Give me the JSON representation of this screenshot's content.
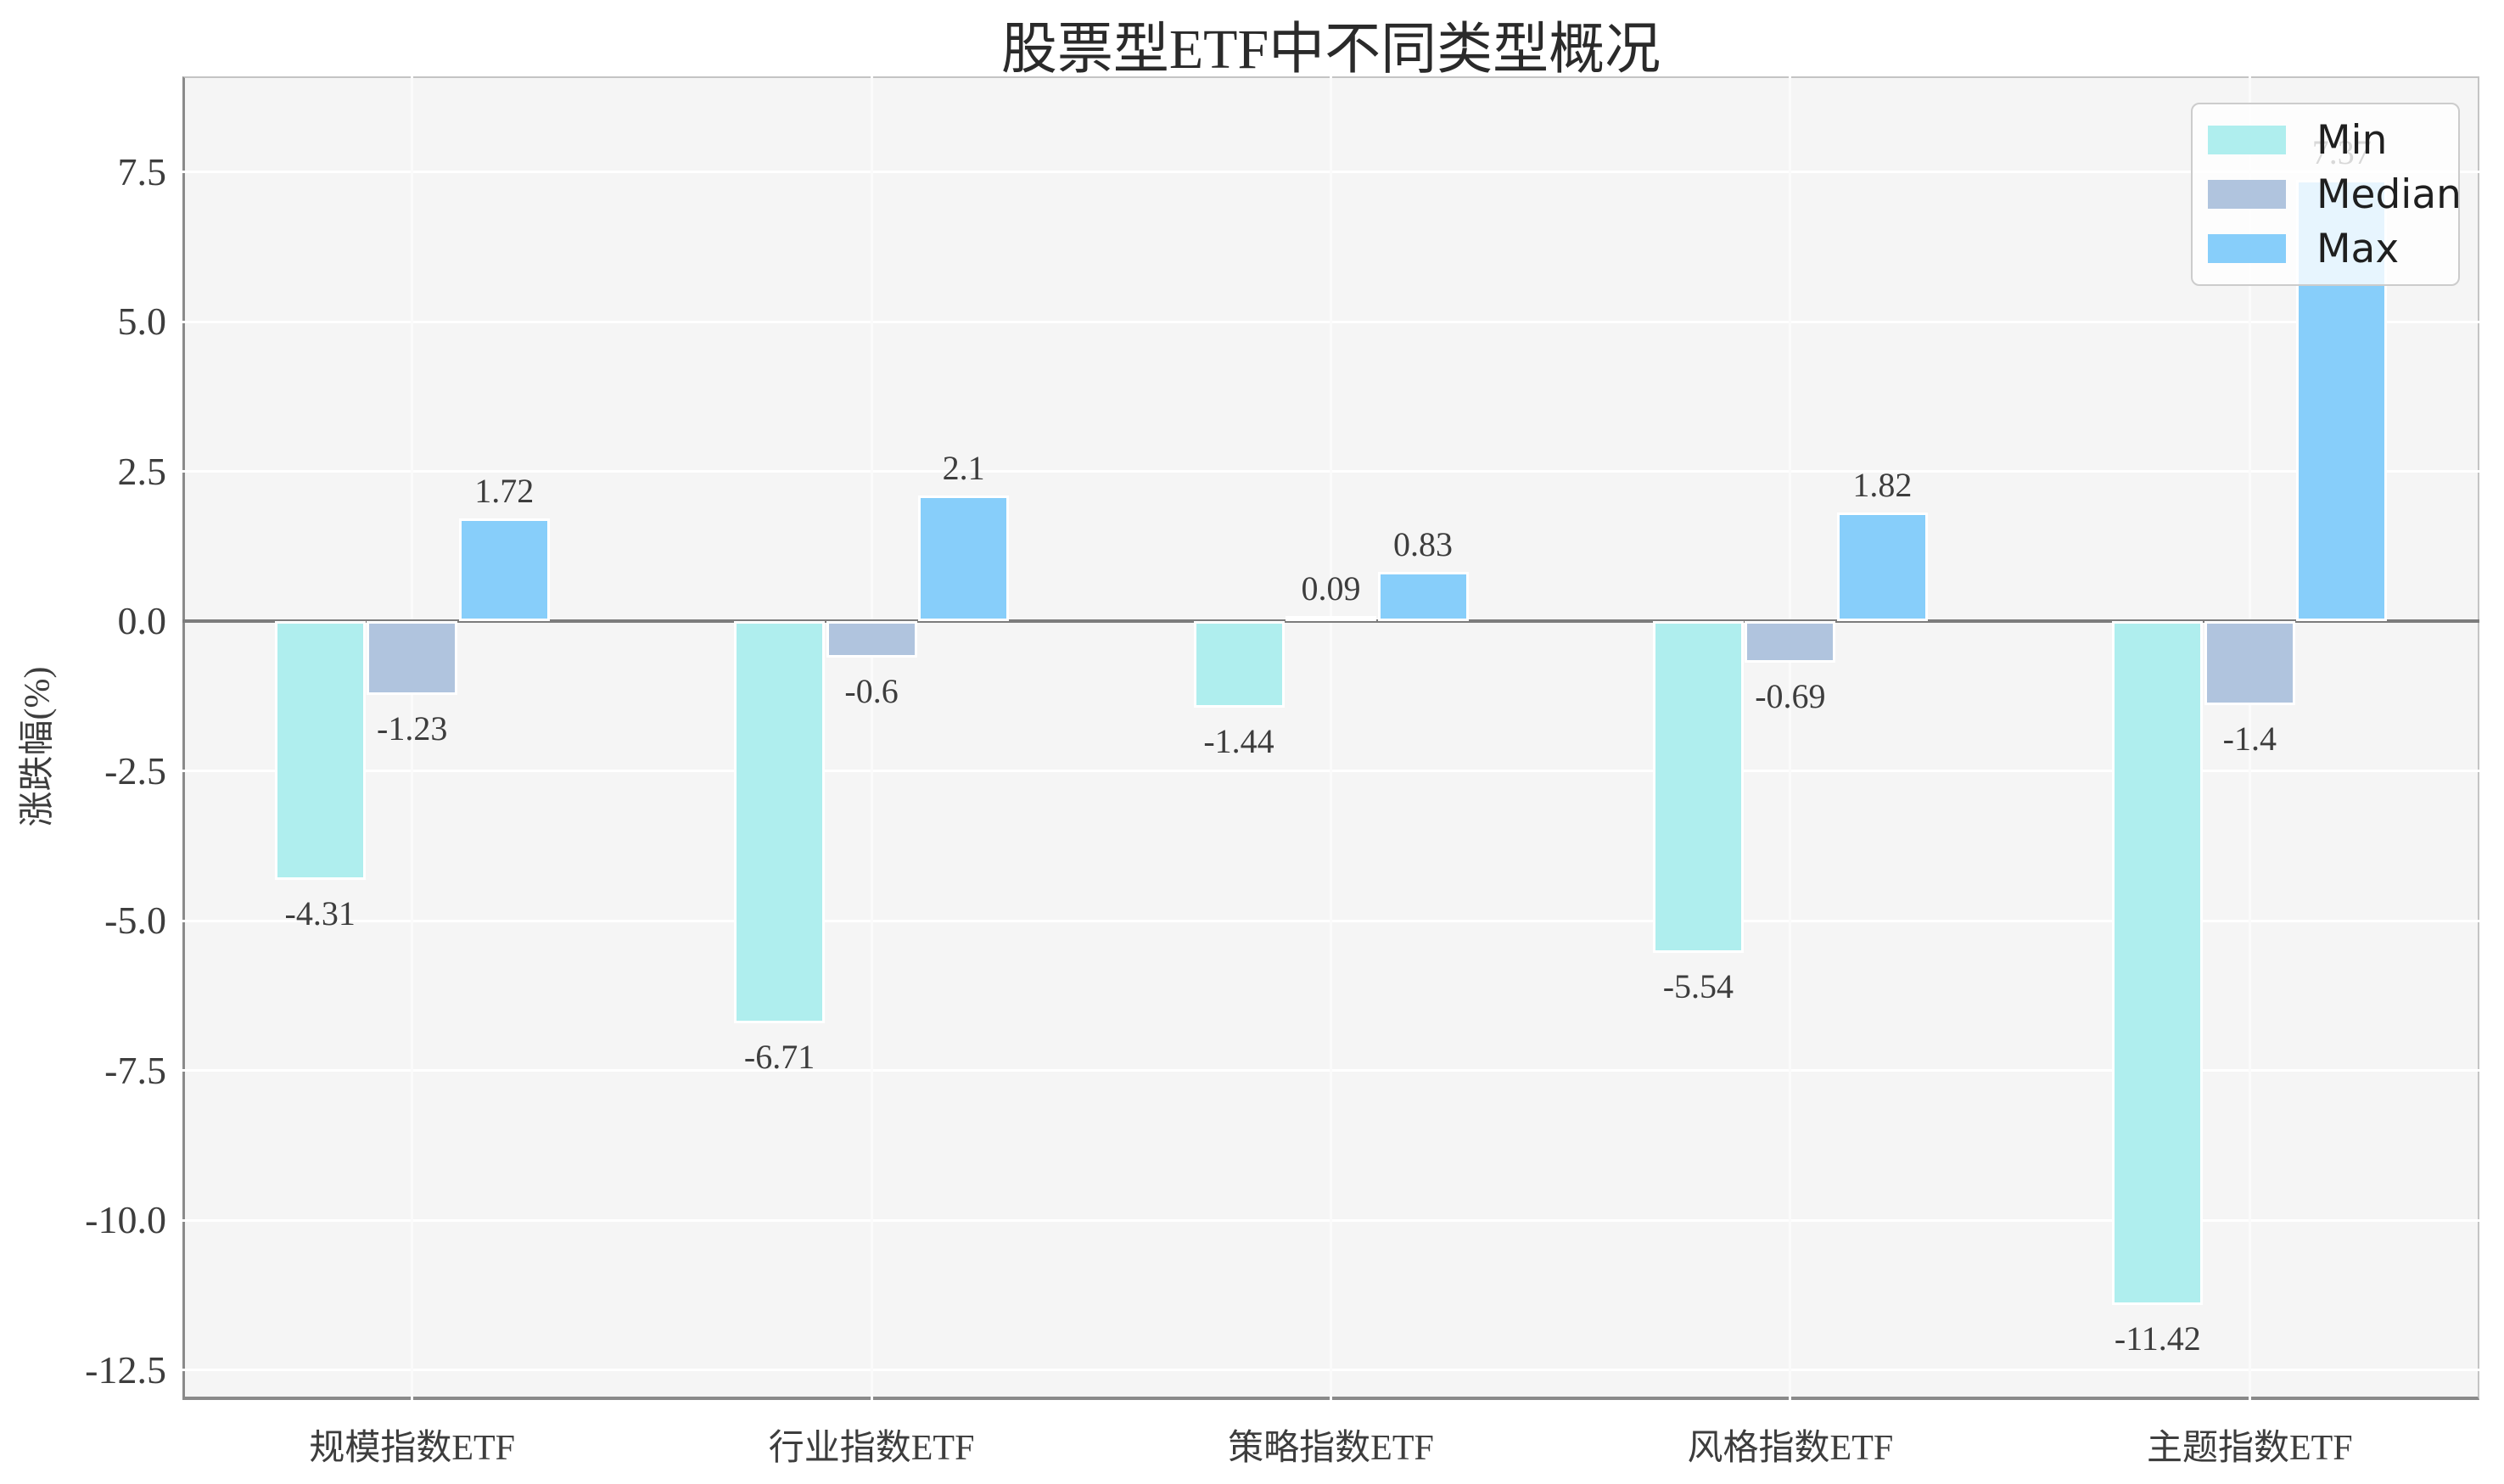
{
  "title": "股票型ETF中不同类型概况",
  "y_axis_label": "涨跌幅(%)",
  "legend": {
    "items": [
      {
        "label": "Min",
        "color": "#AFEEEE"
      },
      {
        "label": "Median",
        "color": "#B0C4DE"
      },
      {
        "label": "Max",
        "color": "#87CEFA"
      }
    ]
  },
  "colors": {
    "plot_background": "#f5f5f5",
    "figure_background": "#ffffff",
    "gridline": "#ffffff",
    "zero_line": "#7c7c7c",
    "bar_edge": "#ffffff",
    "text": "#3d3d3d"
  },
  "chart_data": {
    "type": "bar",
    "title": "股票型ETF中不同类型概况",
    "xlabel": "",
    "ylabel": "涨跌幅(%)",
    "categories": [
      "规模指数ETF",
      "行业指数ETF",
      "策略指数ETF",
      "风格指数ETF",
      "主题指数ETF"
    ],
    "series": [
      {
        "name": "Min",
        "color": "#AFEEEE",
        "values": [
          -4.31,
          -6.71,
          -1.44,
          -5.54,
          -11.42
        ]
      },
      {
        "name": "Median",
        "color": "#B0C4DE",
        "values": [
          -1.23,
          -0.6,
          0.09,
          -0.69,
          -1.4
        ]
      },
      {
        "name": "Max",
        "color": "#87CEFA",
        "values": [
          1.72,
          2.1,
          0.83,
          1.82,
          7.37
        ]
      }
    ],
    "bar_value_labels": [
      [
        "-4.31",
        "-6.71",
        "-1.44",
        "-5.54",
        "-11.42"
      ],
      [
        "-1.23",
        "-0.6",
        "0.09",
        "-0.69",
        "-1.4"
      ],
      [
        "1.72",
        "2.1",
        "0.83",
        "1.82",
        "7.37"
      ]
    ],
    "yticks": [
      7.5,
      5.0,
      2.5,
      0.0,
      -2.5,
      -5.0,
      -7.5,
      -10.0,
      -12.5
    ],
    "ytick_labels": [
      "7.5",
      "5.0",
      "2.5",
      "0.0",
      "-2.5",
      "-5.0",
      "-7.5",
      "-10.0",
      "-12.5"
    ],
    "ylim": [
      -13.0,
      9.1
    ],
    "grid": true,
    "legend_position": "upper right"
  }
}
